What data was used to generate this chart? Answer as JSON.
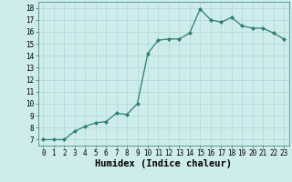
{
  "x": [
    0,
    1,
    2,
    3,
    4,
    5,
    6,
    7,
    8,
    9,
    10,
    11,
    12,
    13,
    14,
    15,
    16,
    17,
    18,
    19,
    20,
    21,
    22,
    23
  ],
  "y": [
    7.0,
    7.0,
    7.0,
    7.7,
    8.1,
    8.4,
    8.5,
    9.2,
    9.1,
    10.0,
    14.2,
    15.3,
    15.4,
    15.4,
    15.9,
    17.9,
    17.0,
    16.8,
    17.2,
    16.5,
    16.3,
    16.3,
    15.9,
    15.4
  ],
  "line_color": "#2e7d6e",
  "marker": "D",
  "marker_size": 2.0,
  "bg_color": "#ceecea",
  "grid_color": "#b0ddd8",
  "xlabel": "Humidex (Indice chaleur)",
  "xlim": [
    -0.5,
    23.5
  ],
  "ylim": [
    6.5,
    18.5
  ],
  "yticks": [
    7,
    8,
    9,
    10,
    11,
    12,
    13,
    14,
    15,
    16,
    17,
    18
  ],
  "xticks": [
    0,
    1,
    2,
    3,
    4,
    5,
    6,
    7,
    8,
    9,
    10,
    11,
    12,
    13,
    14,
    15,
    16,
    17,
    18,
    19,
    20,
    21,
    22,
    23
  ],
  "tick_label_fontsize": 5.5,
  "xlabel_fontsize": 7.5,
  "linewidth": 0.9
}
